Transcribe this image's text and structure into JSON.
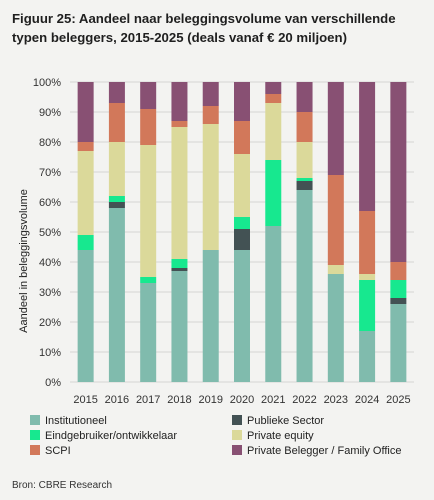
{
  "title": "Figuur 25: Aandeel naar beleggingsvolume van verschillende typen beleggers, 2015-2025 (deals vanaf € 20 miljoen)",
  "source": "Bron: CBRE Research",
  "chart_data": {
    "type": "bar",
    "stacked": true,
    "categories": [
      "2015",
      "2016",
      "2017",
      "2018",
      "2019",
      "2020",
      "2021",
      "2022",
      "2023",
      "2024",
      "2025"
    ],
    "ylabel": "Aandeel in beleggingsvolume",
    "ylim": [
      0,
      100
    ],
    "yticks": [
      "0%",
      "10%",
      "20%",
      "30%",
      "40%",
      "50%",
      "60%",
      "70%",
      "80%",
      "90%",
      "100%"
    ],
    "grid": true,
    "legend_position": "bottom",
    "series": [
      {
        "name": "Institutioneel",
        "color": "#80bbad",
        "values": [
          44,
          58,
          33,
          37,
          44,
          44,
          52,
          64,
          36,
          17,
          26
        ]
      },
      {
        "name": "Publieke Sector",
        "color": "#435254",
        "values": [
          0,
          2,
          0,
          1,
          0,
          7,
          0,
          3,
          0,
          0,
          2
        ]
      },
      {
        "name": "Eindgebruiker/ontwikkelaar",
        "color": "#17e88f",
        "values": [
          5,
          2,
          2,
          3,
          0,
          4,
          22,
          1,
          0,
          17,
          6
        ]
      },
      {
        "name": "Private equity",
        "color": "#dbd99a",
        "values": [
          28,
          18,
          44,
          44,
          42,
          21,
          19,
          12,
          3,
          2,
          0
        ]
      },
      {
        "name": "SCPI",
        "color": "#d2785a",
        "values": [
          3,
          13,
          12,
          2,
          6,
          11,
          3,
          10,
          30,
          21,
          6
        ]
      },
      {
        "name": "Private Belegger / Family Office",
        "color": "#885073",
        "values": [
          20,
          7,
          9,
          13,
          8,
          13,
          4,
          10,
          31,
          43,
          60
        ]
      }
    ]
  }
}
